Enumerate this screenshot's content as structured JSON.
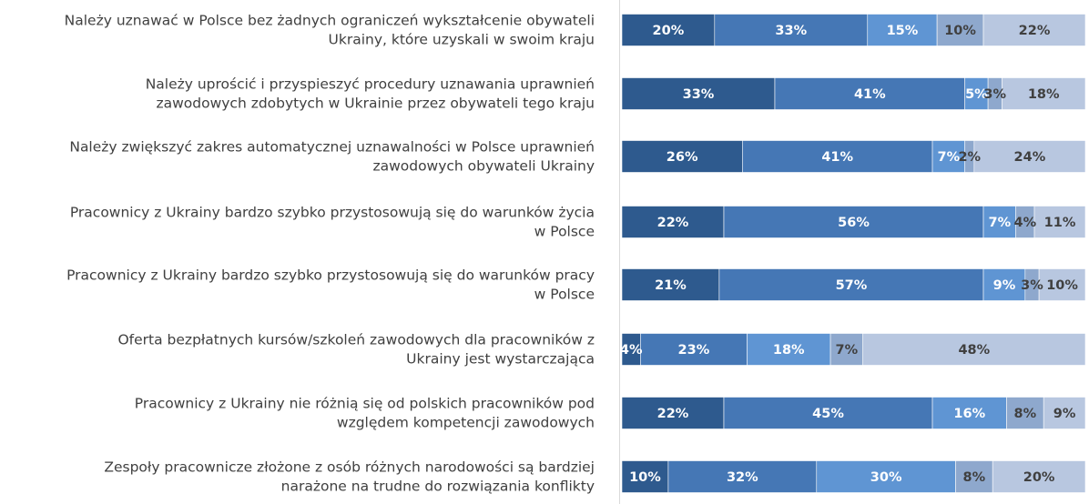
{
  "chart_data": {
    "type": "bar",
    "stacked": true,
    "orientation": "horizontal",
    "legend": "none",
    "grid": false,
    "xlim": [
      0,
      100
    ],
    "categories": [
      [
        "Należy uznawać w Polsce bez żadnych ograniczeń wykształcenie obywateli",
        "Ukrainy, które uzyskali w swoim kraju"
      ],
      [
        "Należy uprościć i przyspieszyć procedury uznawania uprawnień",
        "zawodowych zdobytych w Ukrainie przez obywateli tego kraju"
      ],
      [
        "Należy zwiększyć zakres automatycznej uznawalności w Polsce uprawnień",
        "zawodowych obywateli Ukrainy"
      ],
      [
        "Pracownicy z Ukrainy bardzo szybko przystosowują się do warunków życia",
        "w Polsce"
      ],
      [
        "Pracownicy z Ukrainy bardzo szybko przystosowują się do warunków pracy",
        "w Polsce"
      ],
      [
        "Oferta bezpłatnych kursów/szkoleń zawodowych dla pracowników z",
        "Ukrainy jest wystarczająca"
      ],
      [
        "Pracownicy z Ukrainy nie różnią się od polskich pracowników pod",
        "względem kompetencji zawodowych"
      ],
      [
        "Zespoły pracownicze złożone z osób różnych narodowości są bardziej",
        "narażone na trudne do rozwiązania konflikty"
      ]
    ],
    "series": [
      {
        "color": "#2e5a8e",
        "label_color": "#ffffff",
        "values": [
          20,
          33,
          26,
          22,
          21,
          4,
          22,
          10
        ]
      },
      {
        "color": "#4577b5",
        "label_color": "#ffffff",
        "values": [
          33,
          41,
          41,
          56,
          57,
          23,
          45,
          32
        ]
      },
      {
        "color": "#5f95d3",
        "label_color": "#ffffff",
        "values": [
          15,
          5,
          7,
          7,
          9,
          18,
          16,
          30
        ]
      },
      {
        "color": "#8ea8cd",
        "label_color": "#404040",
        "values": [
          10,
          3,
          2,
          4,
          3,
          7,
          8,
          8
        ]
      },
      {
        "color": "#b8c7e0",
        "label_color": "#404040",
        "values": [
          22,
          18,
          24,
          11,
          10,
          48,
          9,
          20
        ]
      }
    ]
  }
}
